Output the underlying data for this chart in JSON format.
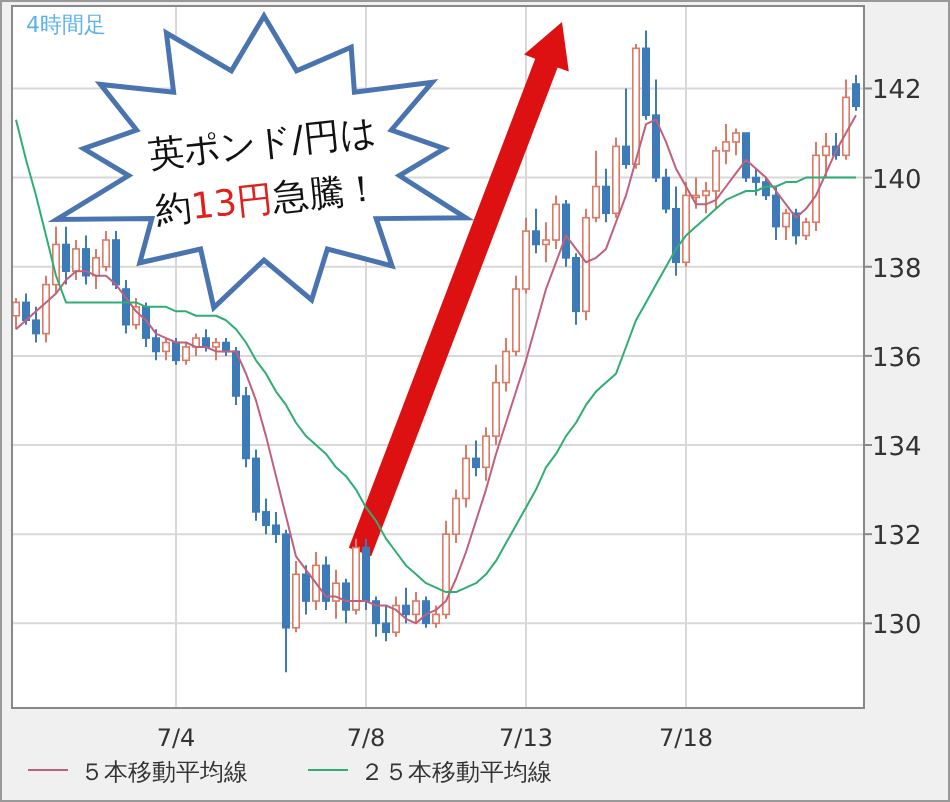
{
  "chart_data": {
    "type": "candlestick",
    "title": "4時間足",
    "annotations": [
      "英ポンド/円は",
      "約",
      "13円",
      "急騰！"
    ],
    "categories": [
      null,
      null,
      null,
      null,
      null,
      null,
      null,
      null,
      null,
      null,
      null,
      null,
      null,
      null,
      null,
      null,
      "7/4",
      null,
      null,
      null,
      null,
      null,
      null,
      null,
      null,
      null,
      null,
      null,
      null,
      null,
      null,
      null,
      null,
      null,
      null,
      "7/8",
      null,
      null,
      null,
      null,
      null,
      null,
      null,
      null,
      null,
      null,
      null,
      null,
      null,
      null,
      null,
      "7/13",
      null,
      null,
      null,
      null,
      null,
      null,
      null,
      null,
      null,
      null,
      null,
      null,
      null,
      null,
      null,
      "7/18",
      null,
      null,
      null,
      null,
      null,
      null,
      null,
      null,
      null,
      null,
      null,
      null,
      null,
      null,
      null,
      null,
      null
    ],
    "ohlc": [
      [
        136.9,
        137.3,
        136.6,
        137.2
      ],
      [
        137.2,
        137.4,
        136.7,
        136.8
      ],
      [
        136.8,
        137.1,
        136.3,
        136.5
      ],
      [
        136.5,
        137.8,
        136.3,
        137.6
      ],
      [
        137.6,
        138.9,
        137.4,
        138.5
      ],
      [
        138.5,
        138.9,
        137.6,
        137.9
      ],
      [
        137.9,
        138.6,
        137.7,
        138.4
      ],
      [
        138.4,
        138.7,
        137.6,
        137.8
      ],
      [
        137.8,
        138.4,
        137.5,
        138.2
      ],
      [
        138.0,
        138.8,
        137.9,
        138.6
      ],
      [
        138.6,
        138.8,
        137.5,
        137.6
      ],
      [
        137.5,
        137.7,
        136.5,
        136.7
      ],
      [
        136.7,
        137.3,
        136.6,
        137.1
      ],
      [
        137.1,
        137.2,
        136.2,
        136.4
      ],
      [
        136.4,
        136.6,
        135.9,
        136.1
      ],
      [
        136.1,
        136.4,
        135.9,
        136.3
      ],
      [
        136.3,
        136.4,
        135.8,
        135.9
      ],
      [
        135.9,
        136.3,
        135.8,
        136.2
      ],
      [
        136.2,
        136.5,
        136.0,
        136.4
      ],
      [
        136.4,
        136.6,
        136.1,
        136.2
      ],
      [
        136.2,
        136.4,
        135.9,
        136.3
      ],
      [
        136.3,
        136.4,
        136.0,
        136.1
      ],
      [
        136.1,
        136.2,
        134.9,
        135.1
      ],
      [
        135.1,
        135.3,
        133.5,
        133.7
      ],
      [
        133.7,
        133.9,
        132.3,
        132.5
      ],
      [
        132.5,
        132.8,
        132.0,
        132.2
      ],
      [
        132.2,
        132.5,
        131.8,
        132.0
      ],
      [
        132.0,
        132.1,
        128.9,
        129.9
      ],
      [
        129.9,
        131.4,
        129.8,
        131.1
      ],
      [
        131.1,
        131.3,
        130.2,
        130.5
      ],
      [
        130.5,
        131.6,
        130.3,
        131.3
      ],
      [
        131.3,
        131.5,
        130.3,
        130.5
      ],
      [
        130.5,
        131.2,
        130.1,
        130.9
      ],
      [
        130.9,
        131.0,
        130.0,
        130.3
      ],
      [
        130.3,
        131.9,
        130.2,
        131.7
      ],
      [
        131.7,
        131.9,
        130.3,
        130.5
      ],
      [
        130.5,
        130.6,
        129.7,
        130.0
      ],
      [
        130.0,
        130.4,
        129.6,
        129.8
      ],
      [
        129.8,
        130.6,
        129.7,
        130.4
      ],
      [
        130.4,
        130.8,
        130.0,
        130.2
      ],
      [
        130.2,
        130.7,
        130.0,
        130.5
      ],
      [
        130.5,
        130.6,
        129.9,
        130.0
      ],
      [
        130.0,
        130.4,
        129.9,
        130.2
      ],
      [
        130.2,
        132.3,
        130.1,
        132.0
      ],
      [
        132.0,
        133.0,
        131.8,
        132.8
      ],
      [
        132.8,
        134.0,
        132.6,
        133.7
      ],
      [
        133.7,
        134.1,
        133.3,
        133.5
      ],
      [
        133.5,
        134.4,
        133.2,
        134.2
      ],
      [
        134.2,
        135.8,
        134.0,
        135.4
      ],
      [
        135.4,
        136.4,
        135.2,
        136.1
      ],
      [
        136.1,
        137.8,
        136.0,
        137.5
      ],
      [
        137.5,
        139.1,
        137.4,
        138.8
      ],
      [
        138.8,
        139.3,
        138.3,
        138.5
      ],
      [
        138.5,
        139.0,
        138.1,
        138.6
      ],
      [
        138.6,
        139.6,
        138.4,
        139.4
      ],
      [
        139.4,
        139.5,
        138.0,
        138.2
      ],
      [
        138.2,
        138.3,
        136.7,
        137.0
      ],
      [
        137.0,
        139.3,
        136.8,
        139.1
      ],
      [
        139.1,
        140.6,
        139.0,
        139.8
      ],
      [
        139.8,
        140.2,
        139.0,
        139.2
      ],
      [
        139.2,
        140.9,
        139.1,
        140.7
      ],
      [
        140.7,
        142.0,
        140.2,
        140.3
      ],
      [
        140.3,
        143.0,
        140.2,
        142.9
      ],
      [
        142.9,
        143.3,
        141.3,
        141.4
      ],
      [
        141.4,
        142.2,
        139.9,
        140.0
      ],
      [
        140.0,
        140.2,
        139.2,
        139.3
      ],
      [
        139.3,
        139.8,
        137.8,
        138.1
      ],
      [
        138.1,
        139.9,
        138.0,
        139.6
      ],
      [
        139.6,
        140.0,
        139.3,
        139.6
      ],
      [
        139.6,
        139.9,
        139.2,
        139.7
      ],
      [
        139.7,
        140.7,
        139.3,
        140.6
      ],
      [
        140.6,
        141.2,
        140.3,
        140.8
      ],
      [
        140.8,
        141.1,
        140.5,
        141.0
      ],
      [
        141.0,
        141.0,
        139.9,
        140.0
      ],
      [
        140.0,
        140.2,
        139.6,
        139.9
      ],
      [
        139.9,
        140.0,
        139.5,
        139.6
      ],
      [
        139.6,
        139.8,
        138.6,
        138.9
      ],
      [
        138.9,
        139.3,
        138.6,
        139.2
      ],
      [
        139.2,
        139.3,
        138.5,
        138.7
      ],
      [
        138.7,
        139.1,
        138.6,
        139.0
      ],
      [
        139.0,
        140.8,
        138.8,
        140.5
      ],
      [
        140.5,
        141.0,
        140.0,
        140.7
      ],
      [
        140.7,
        141.0,
        140.4,
        140.5
      ],
      [
        140.5,
        142.2,
        140.4,
        141.8
      ],
      [
        142.1,
        142.3,
        141.5,
        141.6
      ]
    ],
    "series": [
      {
        "name": "５本移動平均線",
        "type": "line",
        "color": "#c0607a",
        "values": [
          136.6,
          136.8,
          137.0,
          137.2,
          137.4,
          137.7,
          137.9,
          137.9,
          137.8,
          137.8,
          137.6,
          137.3,
          137.0,
          136.8,
          136.5,
          136.4,
          136.3,
          136.3,
          136.2,
          136.2,
          136.1,
          136.1,
          136.1,
          135.6,
          135.0,
          134.2,
          133.3,
          132.4,
          131.5,
          131.2,
          130.9,
          130.6,
          130.6,
          130.5,
          130.5,
          130.5,
          130.4,
          130.4,
          130.3,
          130.1,
          130.0,
          130.2,
          130.3,
          130.5,
          131.0,
          131.6,
          132.3,
          133.0,
          133.8,
          134.5,
          135.2,
          135.9,
          136.7,
          137.5,
          138.1,
          138.7,
          138.4,
          138.1,
          138.2,
          138.4,
          139.0,
          139.6,
          140.4,
          141.2,
          141.3,
          140.8,
          140.2,
          139.8,
          139.4,
          139.4,
          139.5,
          139.8,
          140.1,
          140.4,
          140.2,
          140.0,
          139.7,
          139.4,
          139.1,
          139.3,
          139.6,
          140.1,
          140.6,
          141.0,
          141.4
        ]
      },
      {
        "name": "２５本移動平均線",
        "type": "line",
        "color": "#2fae74",
        "values": [
          141.3,
          140.4,
          139.6,
          138.7,
          137.8,
          137.2,
          137.2,
          137.2,
          137.2,
          137.2,
          137.2,
          137.2,
          137.2,
          137.1,
          137.1,
          137.1,
          137.0,
          137.0,
          136.9,
          136.9,
          136.9,
          136.8,
          136.6,
          136.3,
          135.9,
          135.6,
          135.2,
          134.9,
          134.5,
          134.2,
          134.0,
          133.8,
          133.5,
          133.3,
          133.0,
          132.6,
          132.3,
          131.9,
          131.6,
          131.3,
          131.1,
          130.9,
          130.8,
          130.7,
          130.7,
          130.8,
          130.9,
          131.1,
          131.4,
          131.8,
          132.2,
          132.6,
          133.0,
          133.5,
          133.8,
          134.2,
          134.5,
          134.9,
          135.2,
          135.4,
          135.6,
          136.2,
          136.8,
          137.2,
          137.6,
          138.0,
          138.4,
          138.7,
          138.9,
          139.1,
          139.3,
          139.5,
          139.6,
          139.7,
          139.7,
          139.8,
          139.8,
          139.9,
          139.9,
          140.0,
          140.0,
          140.0,
          140.0,
          140.0,
          140.0
        ]
      }
    ],
    "ylim": [
      128.1,
      143.85
    ],
    "yticks": [
      130,
      132,
      134,
      136,
      138,
      140,
      142
    ],
    "grid": true,
    "legend": "bottom"
  }
}
